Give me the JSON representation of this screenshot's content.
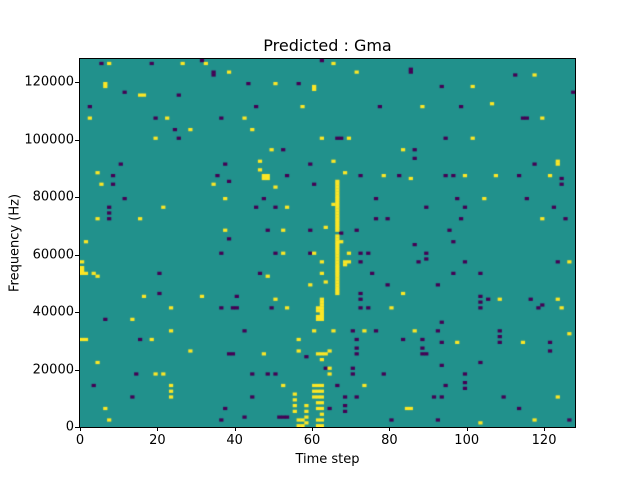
{
  "chart_data": {
    "type": "heatmap",
    "title": "Predicted : Gma",
    "xlabel": "Time step",
    "ylabel": "Frequency (Hz)",
    "x_range": [
      0,
      128
    ],
    "y_range_hz": [
      0,
      128000
    ],
    "grid_size": [
      128,
      128
    ],
    "legend": "none",
    "grid": false,
    "colors": {
      "background_mid": "#21918c",
      "low": "#440154",
      "high": "#fde725"
    },
    "x_tick_values": [
      0,
      20,
      40,
      60,
      80,
      100,
      120
    ],
    "x_tick_labels": [
      "0",
      "20",
      "40",
      "60",
      "80",
      "100",
      "120"
    ],
    "y_tick_values": [
      0,
      20000,
      40000,
      60000,
      80000,
      100000,
      120000
    ],
    "y_tick_labels": [
      "0",
      "20000",
      "40000",
      "60000",
      "80000",
      "100000",
      "120000"
    ],
    "cells_high": [
      [
        7,
        126
      ],
      [
        26,
        126
      ],
      [
        32,
        126
      ],
      [
        38,
        123
      ],
      [
        6,
        119
      ],
      [
        6,
        118
      ],
      [
        15,
        115
      ],
      [
        16,
        115
      ],
      [
        2,
        107
      ],
      [
        22,
        107
      ],
      [
        28,
        103
      ],
      [
        42,
        107
      ],
      [
        19,
        100
      ],
      [
        4,
        88
      ],
      [
        65,
        126
      ],
      [
        71,
        123
      ],
      [
        50,
        119
      ],
      [
        60,
        118
      ],
      [
        60,
        117
      ],
      [
        57,
        111
      ],
      [
        44,
        103
      ],
      [
        69,
        100
      ],
      [
        62,
        100
      ],
      [
        49,
        96
      ],
      [
        83,
        96
      ],
      [
        46,
        92
      ],
      [
        46,
        89
      ],
      [
        47,
        87
      ],
      [
        48,
        87
      ],
      [
        47,
        86
      ],
      [
        48,
        86
      ],
      [
        65,
        92
      ],
      [
        68,
        88
      ],
      [
        78,
        87
      ],
      [
        117,
        122
      ],
      [
        101,
        118
      ],
      [
        88,
        111
      ],
      [
        106,
        112
      ],
      [
        119,
        107
      ],
      [
        101,
        100
      ],
      [
        123,
        92
      ],
      [
        123,
        91
      ],
      [
        99,
        87
      ],
      [
        107,
        87
      ],
      [
        121,
        87
      ],
      [
        85,
        86
      ],
      [
        5,
        84
      ],
      [
        34,
        84
      ],
      [
        37,
        79
      ],
      [
        21,
        76
      ],
      [
        4,
        72
      ],
      [
        15,
        72
      ],
      [
        37,
        68
      ],
      [
        1,
        64
      ],
      [
        0,
        57
      ],
      [
        0,
        55
      ],
      [
        0,
        54
      ],
      [
        0,
        53
      ],
      [
        1,
        53
      ],
      [
        3,
        53
      ],
      [
        4,
        52
      ],
      [
        16,
        45
      ],
      [
        31,
        45
      ],
      [
        66,
        46
      ],
      [
        66,
        47
      ],
      [
        66,
        48
      ],
      [
        66,
        49
      ],
      [
        66,
        50
      ],
      [
        66,
        51
      ],
      [
        66,
        52
      ],
      [
        66,
        53
      ],
      [
        66,
        54
      ],
      [
        66,
        55
      ],
      [
        66,
        56
      ],
      [
        66,
        57
      ],
      [
        66,
        58
      ],
      [
        66,
        59
      ],
      [
        66,
        60
      ],
      [
        66,
        61
      ],
      [
        66,
        62
      ],
      [
        66,
        63
      ],
      [
        66,
        64
      ],
      [
        66,
        65
      ],
      [
        66,
        66
      ],
      [
        66,
        68
      ],
      [
        66,
        69
      ],
      [
        66,
        70
      ],
      [
        66,
        71
      ],
      [
        66,
        72
      ],
      [
        66,
        73
      ],
      [
        66,
        74
      ],
      [
        66,
        75
      ],
      [
        66,
        76
      ],
      [
        66,
        77
      ],
      [
        66,
        78
      ],
      [
        66,
        79
      ],
      [
        66,
        80
      ],
      [
        66,
        81
      ],
      [
        66,
        82
      ],
      [
        66,
        83
      ],
      [
        66,
        84
      ],
      [
        66,
        85
      ],
      [
        50,
        83
      ],
      [
        53,
        76
      ],
      [
        65,
        77
      ],
      [
        52,
        68
      ],
      [
        63,
        69
      ],
      [
        67,
        64
      ],
      [
        69,
        60
      ],
      [
        52,
        60
      ],
      [
        60,
        60
      ],
      [
        62,
        57
      ],
      [
        68,
        57
      ],
      [
        69,
        57
      ],
      [
        68,
        56
      ],
      [
        48,
        52
      ],
      [
        62,
        53
      ],
      [
        63,
        50
      ],
      [
        59,
        49
      ],
      [
        83,
        46
      ],
      [
        50,
        44
      ],
      [
        104,
        79
      ],
      [
        119,
        72
      ],
      [
        126,
        57
      ],
      [
        108,
        44
      ],
      [
        123,
        44
      ],
      [
        23,
        41
      ],
      [
        13,
        37
      ],
      [
        23,
        33
      ],
      [
        0,
        30
      ],
      [
        1,
        30
      ],
      [
        18,
        30
      ],
      [
        28,
        26
      ],
      [
        4,
        22
      ],
      [
        19,
        18
      ],
      [
        21,
        18
      ],
      [
        23,
        14
      ],
      [
        23,
        12
      ],
      [
        23,
        10
      ],
      [
        6,
        6
      ],
      [
        7,
        2
      ],
      [
        53,
        41
      ],
      [
        61,
        41
      ],
      [
        62,
        41
      ],
      [
        61,
        40
      ],
      [
        62,
        40
      ],
      [
        62,
        39
      ],
      [
        62,
        44
      ],
      [
        62,
        43
      ],
      [
        62,
        42
      ],
      [
        61,
        38
      ],
      [
        62,
        38
      ],
      [
        61,
        37
      ],
      [
        62,
        37
      ],
      [
        80,
        41
      ],
      [
        60,
        33
      ],
      [
        65,
        33
      ],
      [
        73,
        33
      ],
      [
        56,
        30
      ],
      [
        47,
        25
      ],
      [
        56,
        26
      ],
      [
        61,
        25
      ],
      [
        62,
        25
      ],
      [
        63,
        25
      ],
      [
        64,
        26
      ],
      [
        62,
        23
      ],
      [
        64,
        20
      ],
      [
        64,
        18
      ],
      [
        52,
        14
      ],
      [
        73,
        14
      ],
      [
        60,
        14
      ],
      [
        61,
        14
      ],
      [
        62,
        14
      ],
      [
        60,
        12
      ],
      [
        61,
        12
      ],
      [
        62,
        12
      ],
      [
        60,
        10
      ],
      [
        61,
        10
      ],
      [
        62,
        10
      ],
      [
        61,
        8
      ],
      [
        62,
        8
      ],
      [
        61,
        6
      ],
      [
        62,
        6
      ],
      [
        62,
        4
      ],
      [
        61,
        2
      ],
      [
        62,
        2
      ],
      [
        61,
        0
      ],
      [
        62,
        0
      ],
      [
        55,
        11
      ],
      [
        55,
        9
      ],
      [
        55,
        7
      ],
      [
        55,
        5
      ],
      [
        58,
        7
      ],
      [
        58,
        5
      ],
      [
        58,
        3
      ],
      [
        58,
        1
      ],
      [
        56,
        2
      ],
      [
        57,
        2
      ],
      [
        56,
        0
      ],
      [
        57,
        0
      ],
      [
        84,
        6
      ],
      [
        85,
        6
      ],
      [
        124,
        41
      ],
      [
        86,
        33
      ],
      [
        97,
        29
      ],
      [
        114,
        29
      ],
      [
        126,
        32
      ],
      [
        123,
        10
      ],
      [
        103,
        1
      ],
      [
        117,
        2
      ]
    ],
    "cells_low": [
      [
        5,
        126
      ],
      [
        18,
        126
      ],
      [
        31,
        127
      ],
      [
        34,
        123
      ],
      [
        34,
        122
      ],
      [
        11,
        116
      ],
      [
        25,
        115
      ],
      [
        2,
        111
      ],
      [
        19,
        107
      ],
      [
        24,
        103
      ],
      [
        25,
        100
      ],
      [
        36,
        107
      ],
      [
        10,
        91
      ],
      [
        8,
        87
      ],
      [
        37,
        91
      ],
      [
        35,
        87
      ],
      [
        62,
        127
      ],
      [
        85,
        123
      ],
      [
        85,
        124
      ],
      [
        43,
        119
      ],
      [
        56,
        119
      ],
      [
        45,
        111
      ],
      [
        77,
        111
      ],
      [
        66,
        100
      ],
      [
        67,
        100
      ],
      [
        52,
        96
      ],
      [
        53,
        87
      ],
      [
        59,
        91
      ],
      [
        72,
        87
      ],
      [
        82,
        87
      ],
      [
        112,
        122
      ],
      [
        93,
        118
      ],
      [
        127,
        116
      ],
      [
        98,
        111
      ],
      [
        114,
        107
      ],
      [
        115,
        107
      ],
      [
        94,
        100
      ],
      [
        86,
        96
      ],
      [
        86,
        93
      ],
      [
        117,
        91
      ],
      [
        94,
        87
      ],
      [
        96,
        87
      ],
      [
        113,
        87
      ],
      [
        124,
        86
      ],
      [
        8,
        84
      ],
      [
        38,
        85
      ],
      [
        11,
        79
      ],
      [
        7,
        76
      ],
      [
        7,
        74
      ],
      [
        7,
        72
      ],
      [
        38,
        65
      ],
      [
        36,
        60
      ],
      [
        20,
        53
      ],
      [
        20,
        46
      ],
      [
        40,
        45
      ],
      [
        60,
        84
      ],
      [
        47,
        79
      ],
      [
        50,
        76
      ],
      [
        45,
        76
      ],
      [
        76,
        79
      ],
      [
        76,
        72
      ],
      [
        79,
        72
      ],
      [
        48,
        68
      ],
      [
        59,
        68
      ],
      [
        67,
        67
      ],
      [
        71,
        68
      ],
      [
        50,
        60
      ],
      [
        59,
        60
      ],
      [
        72,
        60
      ],
      [
        72,
        57
      ],
      [
        74,
        60
      ],
      [
        46,
        53
      ],
      [
        75,
        53
      ],
      [
        72,
        46
      ],
      [
        72,
        44
      ],
      [
        79,
        49
      ],
      [
        124,
        84
      ],
      [
        97,
        79
      ],
      [
        115,
        79
      ],
      [
        99,
        76
      ],
      [
        122,
        76
      ],
      [
        89,
        76
      ],
      [
        98,
        72
      ],
      [
        125,
        72
      ],
      [
        95,
        68
      ],
      [
        96,
        64
      ],
      [
        86,
        63
      ],
      [
        89,
        60
      ],
      [
        89,
        58
      ],
      [
        87,
        57
      ],
      [
        99,
        57
      ],
      [
        123,
        57
      ],
      [
        96,
        53
      ],
      [
        103,
        53
      ],
      [
        92,
        49
      ],
      [
        103,
        45
      ],
      [
        103,
        43
      ],
      [
        105,
        44
      ],
      [
        116,
        44
      ],
      [
        119,
        42
      ],
      [
        36,
        41
      ],
      [
        39,
        41
      ],
      [
        40,
        41
      ],
      [
        6,
        37
      ],
      [
        42,
        33
      ],
      [
        15,
        30
      ],
      [
        38,
        25
      ],
      [
        39,
        25
      ],
      [
        14,
        18
      ],
      [
        3,
        14
      ],
      [
        13,
        10
      ],
      [
        37,
        6
      ],
      [
        36,
        2
      ],
      [
        42,
        3
      ],
      [
        49,
        41
      ],
      [
        72,
        41
      ],
      [
        74,
        41
      ],
      [
        70,
        33
      ],
      [
        76,
        33
      ],
      [
        71,
        30
      ],
      [
        71,
        27
      ],
      [
        71,
        25
      ],
      [
        83,
        30
      ],
      [
        58,
        24
      ],
      [
        63,
        20
      ],
      [
        70,
        20
      ],
      [
        70,
        18
      ],
      [
        44,
        18
      ],
      [
        48,
        18
      ],
      [
        50,
        18
      ],
      [
        66,
        14
      ],
      [
        71,
        10
      ],
      [
        68,
        10
      ],
      [
        68,
        7
      ],
      [
        68,
        5
      ],
      [
        64,
        6
      ],
      [
        51,
        3
      ],
      [
        52,
        3
      ],
      [
        53,
        3
      ],
      [
        80,
        2
      ],
      [
        78,
        18
      ],
      [
        44,
        10
      ],
      [
        103,
        41
      ],
      [
        118,
        41
      ],
      [
        93,
        36
      ],
      [
        92,
        33
      ],
      [
        93,
        29
      ],
      [
        88,
        30
      ],
      [
        88,
        27
      ],
      [
        88,
        25
      ],
      [
        89,
        25
      ],
      [
        108,
        33
      ],
      [
        108,
        31
      ],
      [
        108,
        29
      ],
      [
        121,
        29
      ],
      [
        121,
        26
      ],
      [
        93,
        21
      ],
      [
        99,
        18
      ],
      [
        99,
        15
      ],
      [
        99,
        13
      ],
      [
        103,
        22
      ],
      [
        94,
        14
      ],
      [
        91,
        10
      ],
      [
        93,
        10
      ],
      [
        109,
        10
      ],
      [
        113,
        6
      ],
      [
        92,
        2
      ],
      [
        126,
        2
      ]
    ]
  }
}
